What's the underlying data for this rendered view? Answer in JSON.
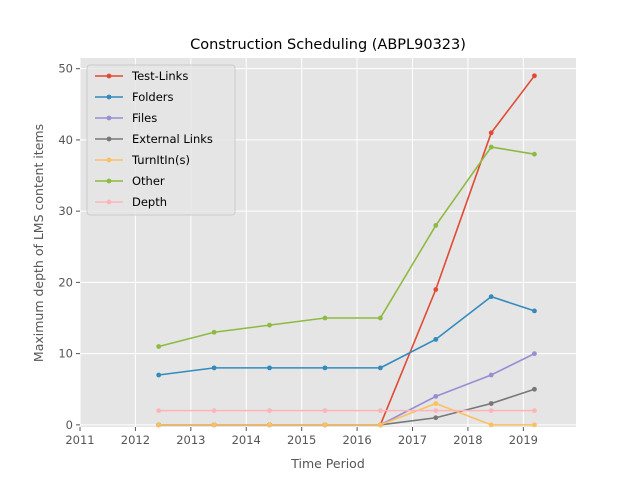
{
  "chart_data": {
    "type": "line",
    "title": "Construction Scheduling (ABPL90323)",
    "xlabel": "Time Period",
    "ylabel": "Maximum depth of LMS content items",
    "xlim": [
      2011.0,
      2019.95
    ],
    "ylim": [
      -0.3,
      51.5
    ],
    "xticks": [
      2011,
      2012,
      2013,
      2014,
      2015,
      2016,
      2017,
      2018,
      2019
    ],
    "yticks": [
      0,
      10,
      20,
      30,
      40,
      50
    ],
    "grid": true,
    "legend_position": "upper-left",
    "x": [
      2012.42,
      2013.42,
      2014.42,
      2015.42,
      2016.42,
      2017.42,
      2018.42,
      2019.2
    ],
    "series": [
      {
        "name": "Test-Links",
        "color": "#E24A33",
        "values": [
          0,
          0,
          0,
          0,
          0,
          19,
          41,
          49
        ]
      },
      {
        "name": "Folders",
        "color": "#348ABD",
        "values": [
          7,
          8,
          8,
          8,
          8,
          12,
          18,
          16
        ]
      },
      {
        "name": "Files",
        "color": "#988ED5",
        "values": [
          0,
          0,
          0,
          0,
          0,
          4,
          7,
          10
        ]
      },
      {
        "name": "External Links",
        "color": "#777777",
        "values": [
          0,
          0,
          0,
          0,
          0,
          1,
          3,
          5
        ]
      },
      {
        "name": "TurnItIn(s)",
        "color": "#FBC15E",
        "values": [
          0,
          0,
          0,
          0,
          0,
          3,
          0,
          0
        ]
      },
      {
        "name": "Other",
        "color": "#8EBA42",
        "values": [
          11,
          13,
          14,
          15,
          15,
          28,
          39,
          38
        ]
      },
      {
        "name": "Depth",
        "color": "#FFB5B8",
        "values": [
          2,
          2,
          2,
          2,
          2,
          2,
          2,
          2
        ]
      }
    ]
  }
}
